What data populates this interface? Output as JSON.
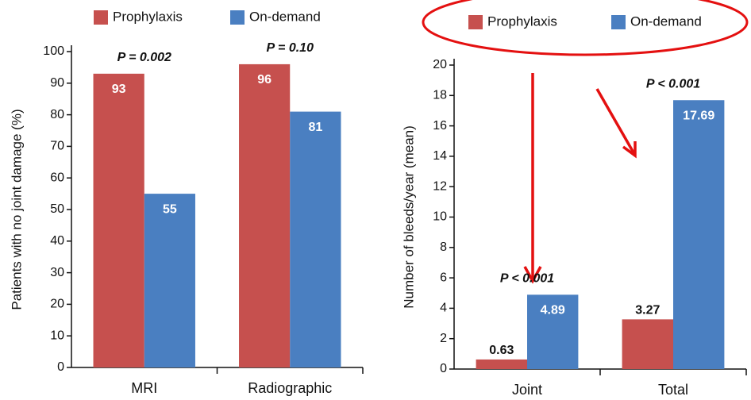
{
  "chart_data": [
    {
      "type": "bar",
      "y_label": "Patients with no joint damage (%)",
      "categories": [
        "MRI",
        "Radiographic"
      ],
      "series": [
        {
          "name": "Prophylaxis",
          "color": "#c6504e",
          "values": [
            93,
            96
          ]
        },
        {
          "name": "On-demand",
          "color": "#4a7fc1",
          "values": [
            55,
            81
          ]
        }
      ],
      "annotations": [
        "P = 0.002",
        "P = 0.10"
      ],
      "ylim": [
        0,
        100
      ],
      "yticks": [
        0,
        10,
        20,
        30,
        40,
        50,
        60,
        70,
        80,
        90,
        100
      ],
      "legend": "top"
    },
    {
      "type": "bar",
      "y_label": "Number of bleeds/year (mean)",
      "categories": [
        "Joint",
        "Total"
      ],
      "series": [
        {
          "name": "Prophylaxis",
          "color": "#c6504e",
          "values": [
            0.63,
            3.27
          ]
        },
        {
          "name": "On-demand",
          "color": "#4a7fc1",
          "values": [
            4.89,
            17.69
          ]
        }
      ],
      "annotations": [
        "P < 0.001",
        "P < 0.001"
      ],
      "ylim": [
        0,
        20
      ],
      "yticks": [
        0,
        2,
        4,
        6,
        8,
        10,
        12,
        14,
        16,
        18,
        20
      ],
      "legend": "top"
    }
  ]
}
